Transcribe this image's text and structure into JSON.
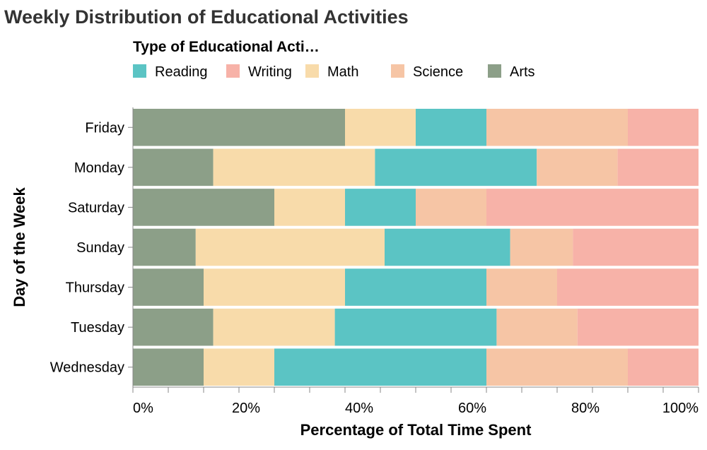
{
  "chart_data": {
    "type": "bar",
    "orientation": "horizontal",
    "stacked": "normalized",
    "title": "Weekly Distribution of Educational Activities",
    "xlabel": "Percentage of Total Time Spent",
    "ylabel": "Day of the Week",
    "legend_title": "Type of Educational Acti…",
    "legend_position": "top",
    "grid": false,
    "xlim": [
      0,
      1
    ],
    "x_ticks": [
      "0%",
      "20%",
      "40%",
      "60%",
      "80%",
      "100%"
    ],
    "categories": [
      "Friday",
      "Monday",
      "Saturday",
      "Sunday",
      "Thursday",
      "Tuesday",
      "Wednesday"
    ],
    "legend_order": [
      "Reading",
      "Writing",
      "Math",
      "Science",
      "Arts"
    ],
    "stack_order": [
      "Arts",
      "Math",
      "Reading",
      "Science",
      "Writing"
    ],
    "series": [
      {
        "name": "Reading",
        "color": "#5bc4c4",
        "values": [
          0.125,
          0.286,
          0.125,
          0.222,
          0.25,
          0.286,
          0.375
        ]
      },
      {
        "name": "Writing",
        "color": "#f7b2a8",
        "values": [
          0.125,
          0.143,
          0.375,
          0.222,
          0.25,
          0.214,
          0.125
        ]
      },
      {
        "name": "Math",
        "color": "#f8dbaa",
        "values": [
          0.125,
          0.286,
          0.125,
          0.334,
          0.25,
          0.215,
          0.125
        ]
      },
      {
        "name": "Science",
        "color": "#f6c5a5",
        "values": [
          0.25,
          0.143,
          0.125,
          0.111,
          0.125,
          0.143,
          0.25
        ]
      },
      {
        "name": "Arts",
        "color": "#8c9f88",
        "values": [
          0.375,
          0.142,
          0.25,
          0.111,
          0.125,
          0.142,
          0.125
        ]
      }
    ]
  }
}
